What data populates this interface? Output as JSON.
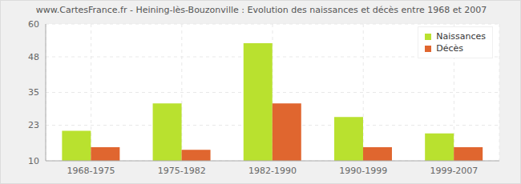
{
  "chart_data": {
    "type": "bar",
    "title": "www.CartesFrance.fr - Heining-lès-Bouzonville : Evolution des naissances et décès entre 1968 et 2007",
    "categories": [
      "1968-1975",
      "1975-1982",
      "1982-1990",
      "1990-1999",
      "1999-2007"
    ],
    "series": [
      {
        "name": "Naissances",
        "color": "#b9e12f",
        "values": [
          21,
          31,
          53,
          26,
          20
        ]
      },
      {
        "name": "Décès",
        "color": "#e0662f",
        "values": [
          15,
          14,
          31,
          15,
          15
        ]
      }
    ],
    "ylim": [
      10,
      60
    ],
    "yticks": [
      10,
      23,
      35,
      48,
      60
    ],
    "grid": true,
    "legend": "top-right"
  }
}
